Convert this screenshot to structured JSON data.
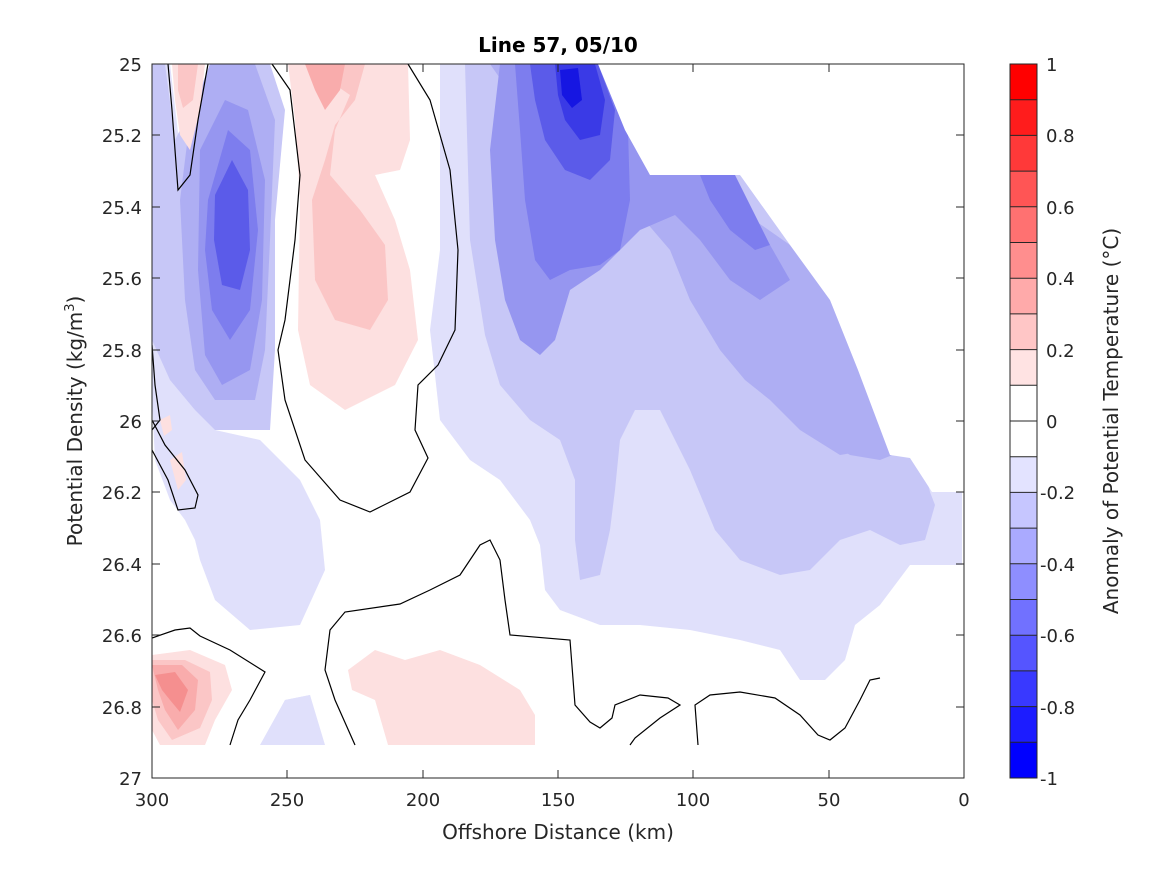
{
  "chart_data": {
    "type": "heatmap",
    "subtype": "filled-contour",
    "title": "Line 57, 05/10",
    "xlabel": "Offshore Distance (km)",
    "ylabel_main": "Potential Density (kg/m",
    "ylabel_sup": "3",
    "ylabel_close": ")",
    "xlim": [
      300,
      0
    ],
    "ylim": [
      27,
      25
    ],
    "x_reversed": true,
    "y_reversed": true,
    "xticks": [
      "300",
      "250",
      "200",
      "150",
      "100",
      "50",
      "0"
    ],
    "yticks": [
      "25",
      "25.2",
      "25.4",
      "25.6",
      "25.8",
      "26",
      "26.2",
      "26.4",
      "26.6",
      "26.8",
      "27"
    ],
    "colorbar": {
      "label": "Anomaly of Potential Temperature (°C)",
      "range": [
        -1,
        1
      ],
      "levels": 20,
      "ticks": [
        "1",
        "0.8",
        "0.6",
        "0.4",
        "0.2",
        "0",
        "-0.2",
        "-0.4",
        "-0.6",
        "-0.8",
        "-1"
      ],
      "colormap": "blue-white-red"
    },
    "zero_contour": true,
    "grid": false
  }
}
